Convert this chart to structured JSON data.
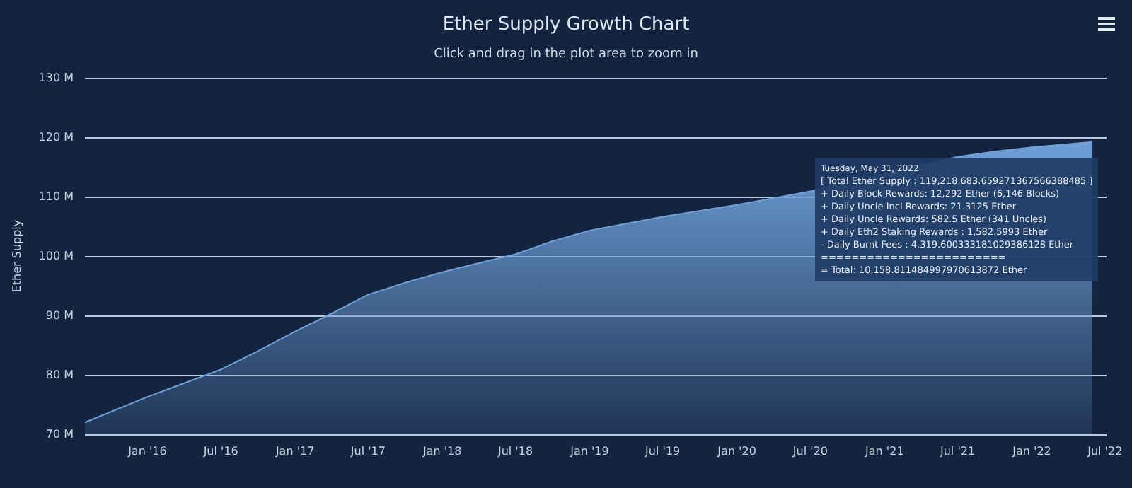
{
  "chart_data": {
    "type": "area",
    "title": "Ether Supply Growth Chart",
    "subtitle": "Click and drag in the plot area to zoom in",
    "ylabel": "Ether Supply",
    "x": [
      "2015-07-30",
      "2016-01-01",
      "2016-07-01",
      "2016-10-01",
      "2017-01-01",
      "2017-04-01",
      "2017-07-01",
      "2017-10-01",
      "2018-01-01",
      "2018-04-01",
      "2018-07-01",
      "2018-10-01",
      "2019-01-01",
      "2019-07-01",
      "2020-01-01",
      "2020-07-01",
      "2021-01-01",
      "2021-07-01",
      "2021-10-01",
      "2022-01-01",
      "2022-05-31"
    ],
    "series": [
      {
        "color": "#6fa0d8",
        "values": [
          72.0,
          76.3,
          80.9,
          84.0,
          87.3,
          90.3,
          93.5,
          95.5,
          97.3,
          98.8,
          100.3,
          102.5,
          104.3,
          106.6,
          108.6,
          110.9,
          null,
          116.7,
          117.6,
          118.3,
          119.2
        ]
      }
    ],
    "xlim": [
      "2015-07-30",
      "2022-07-05"
    ],
    "xticks": [
      {
        "value": "2016-01-01",
        "label": "Jan '16"
      },
      {
        "value": "2016-07-01",
        "label": "Jul '16"
      },
      {
        "value": "2017-01-01",
        "label": "Jan '17"
      },
      {
        "value": "2017-07-01",
        "label": "Jul '17"
      },
      {
        "value": "2018-01-01",
        "label": "Jan '18"
      },
      {
        "value": "2018-07-01",
        "label": "Jul '18"
      },
      {
        "value": "2019-01-01",
        "label": "Jan '19"
      },
      {
        "value": "2019-07-01",
        "label": "Jul '19"
      },
      {
        "value": "2020-01-01",
        "label": "Jan '20"
      },
      {
        "value": "2020-07-01",
        "label": "Jul '20"
      },
      {
        "value": "2021-01-01",
        "label": "Jan '21"
      },
      {
        "value": "2021-07-01",
        "label": "Jul '21"
      },
      {
        "value": "2022-01-01",
        "label": "Jan '22"
      },
      {
        "value": "2022-07-01",
        "label": "Jul '22"
      }
    ],
    "ylim": [
      70,
      130
    ],
    "yticks": [
      {
        "value": 70,
        "label": "70 M"
      },
      {
        "value": 80,
        "label": "80 M"
      },
      {
        "value": 90,
        "label": "90 M"
      },
      {
        "value": 100,
        "label": "100 M"
      },
      {
        "value": 110,
        "label": "110 M"
      },
      {
        "value": 120,
        "label": "120 M"
      },
      {
        "value": 130,
        "label": "130 M"
      }
    ],
    "grid": "y",
    "marker": "none",
    "annotations": [
      "Tuesday, May 31, 2022",
      "[ Total Ether Supply : 119,218,683.659271367566388485 ]",
      "+ Daily Block Rewards: 12,292 Ether (6,146 Blocks)",
      "+ Daily Uncle Incl Rewards: 21.3125 Ether",
      "+ Daily Uncle Rewards: 582.5 Ether (341 Uncles)",
      "+ Daily Eth2 Staking Rewards : 1,582.5993 Ether",
      "- Daily Burnt Fees : 4,319.600333181029386128 Ether",
      "========================",
      "= Total: 10,158.811484997970613872 Ether"
    ]
  }
}
